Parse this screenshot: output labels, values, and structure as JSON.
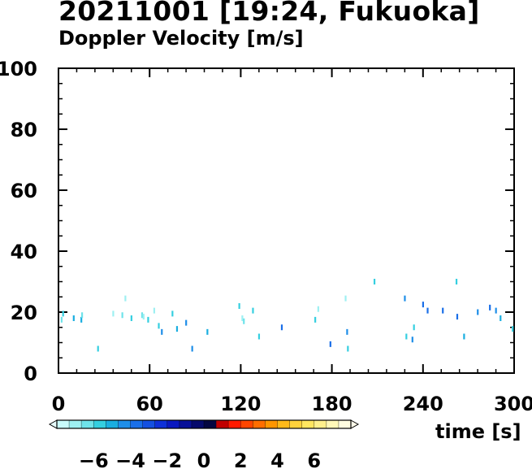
{
  "title": "20211001 [19:24, Fukuoka]",
  "subtitle": "Doppler Velocity [m/s]",
  "chart_data": {
    "type": "scatter",
    "xlabel": "time [s]",
    "ylabel": "",
    "xlim": [
      0,
      300
    ],
    "ylim": [
      0,
      100
    ],
    "xticks": [
      0,
      60,
      120,
      180,
      240,
      300
    ],
    "yticks": [
      0,
      20,
      40,
      60,
      80,
      100
    ],
    "colorbar": {
      "ticks": [
        "−6",
        "−4",
        "−2",
        "0",
        "2",
        "4",
        "6"
      ],
      "tick_values": [
        -6,
        -4,
        -2,
        0,
        2,
        4,
        6
      ],
      "range": [
        -8,
        8
      ],
      "colors": [
        "#c8fbfb",
        "#9ef0f2",
        "#6fe3ea",
        "#35cfe0",
        "#1aaee0",
        "#1e8ee8",
        "#1a6fe8",
        "#1450e0",
        "#0e30d8",
        "#0a18c0",
        "#081098",
        "#060a6c",
        "#040640",
        "#c00000",
        "#ff1a00",
        "#ff4600",
        "#ff6e00",
        "#ff9600",
        "#ffba1a",
        "#ffd23c",
        "#ffe660",
        "#fff08c",
        "#fff8b8",
        "#fffce0"
      ]
    },
    "points": [
      {
        "t": 2,
        "h": 17.5,
        "v": -6.5
      },
      {
        "t": 3,
        "h": 19.5,
        "v": -5.5
      },
      {
        "t": 10,
        "h": 18,
        "v": -5
      },
      {
        "t": 15,
        "h": 17.5,
        "v": -5
      },
      {
        "t": 15.5,
        "h": 19,
        "v": -6.5
      },
      {
        "t": 26,
        "h": 8,
        "v": -5.5
      },
      {
        "t": 36,
        "h": 19.5,
        "v": -7
      },
      {
        "t": 42,
        "h": 19,
        "v": -6.5
      },
      {
        "t": 44,
        "h": 24.5,
        "v": -7
      },
      {
        "t": 48,
        "h": 18,
        "v": -5.5
      },
      {
        "t": 55,
        "h": 19,
        "v": -6.5
      },
      {
        "t": 56,
        "h": 18.5,
        "v": -7
      },
      {
        "t": 59,
        "h": 17.5,
        "v": -6
      },
      {
        "t": 63,
        "h": 20.5,
        "v": -7
      },
      {
        "t": 66,
        "h": 15.5,
        "v": -5.5
      },
      {
        "t": 68,
        "h": 13.5,
        "v": -4.5
      },
      {
        "t": 75,
        "h": 19.5,
        "v": -6
      },
      {
        "t": 78,
        "h": 14.5,
        "v": -5
      },
      {
        "t": 84,
        "h": 16.5,
        "v": -4.5
      },
      {
        "t": 88,
        "h": 8,
        "v": -4.5
      },
      {
        "t": 98,
        "h": 13.5,
        "v": -5
      },
      {
        "t": 119,
        "h": 22,
        "v": -6
      },
      {
        "t": 121,
        "h": 18,
        "v": -7
      },
      {
        "t": 122,
        "h": 17,
        "v": -6.5
      },
      {
        "t": 128,
        "h": 20.5,
        "v": -6
      },
      {
        "t": 132,
        "h": 12,
        "v": -5.5
      },
      {
        "t": 147,
        "h": 15,
        "v": -4
      },
      {
        "t": 169,
        "h": 17.5,
        "v": -5.5
      },
      {
        "t": 171,
        "h": 21,
        "v": -7
      },
      {
        "t": 179,
        "h": 9.5,
        "v": -3.5
      },
      {
        "t": 189,
        "h": 24.5,
        "v": -7
      },
      {
        "t": 190,
        "h": 13.5,
        "v": -4.5
      },
      {
        "t": 190.5,
        "h": 8,
        "v": -5.5
      },
      {
        "t": 208,
        "h": 30,
        "v": -5.5
      },
      {
        "t": 228,
        "h": 24.5,
        "v": -4.5
      },
      {
        "t": 229,
        "h": 12,
        "v": -5.5
      },
      {
        "t": 233,
        "h": 11,
        "v": -4.5
      },
      {
        "t": 234,
        "h": 15,
        "v": -5.5
      },
      {
        "t": 240,
        "h": 22.5,
        "v": -3.5
      },
      {
        "t": 243,
        "h": 20.5,
        "v": -4
      },
      {
        "t": 253,
        "h": 20.5,
        "v": -4
      },
      {
        "t": 262,
        "h": 30,
        "v": -5.5
      },
      {
        "t": 262.5,
        "h": 18.5,
        "v": -4
      },
      {
        "t": 267,
        "h": 12,
        "v": -5
      },
      {
        "t": 276,
        "h": 20,
        "v": -4.5
      },
      {
        "t": 284,
        "h": 21.5,
        "v": -3.5
      },
      {
        "t": 288,
        "h": 20.5,
        "v": -4.5
      },
      {
        "t": 291,
        "h": 18,
        "v": -5
      },
      {
        "t": 299,
        "h": 14.5,
        "v": -5.5
      }
    ]
  }
}
